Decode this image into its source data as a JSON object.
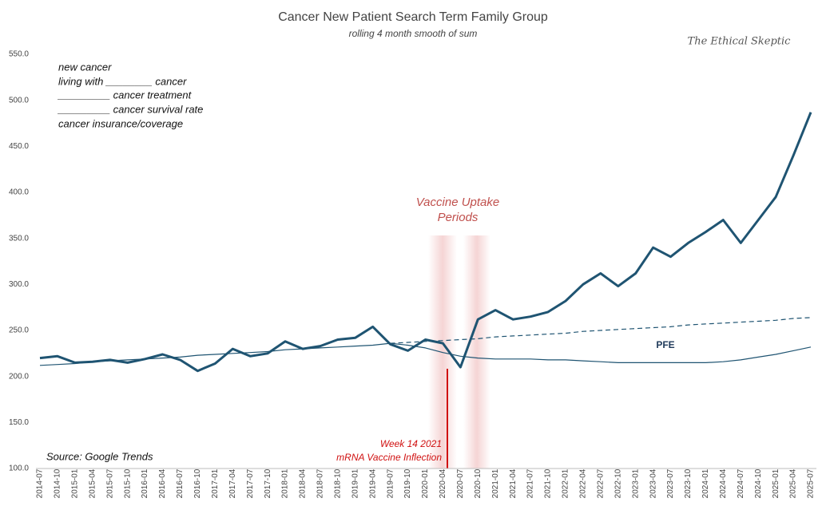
{
  "chart_data": {
    "type": "line",
    "title": "Cancer New Patient Search Term Family Group",
    "subtitle": "rolling 4 month smooth of sum",
    "watermark": "The Ethical Skeptic",
    "legend_text": [
      "new cancer",
      "living with ________ cancer",
      "_________ cancer treatment",
      "_________ cancer survival rate",
      "cancer insurance/coverage"
    ],
    "source": "Source: Google Trends",
    "annotations": {
      "uptake": [
        "Vaccine Uptake",
        "Periods"
      ],
      "inflection": [
        "Week 14 2021",
        "mRNA Vaccine Inflection"
      ]
    },
    "categories": [
      "2014-07",
      "2014-10",
      "2015-01",
      "2015-04",
      "2015-07",
      "2015-10",
      "2016-01",
      "2016-04",
      "2016-07",
      "2016-10",
      "2017-01",
      "2017-04",
      "2017-07",
      "2017-10",
      "2018-01",
      "2018-04",
      "2018-07",
      "2018-10",
      "2019-01",
      "2019-04",
      "2019-07",
      "2019-10",
      "2020-01",
      "2020-04",
      "2020-07",
      "2020-10",
      "2021-01",
      "2021-04",
      "2021-07",
      "2021-10",
      "2022-01",
      "2022-04",
      "2022-07",
      "2022-10",
      "2023-01",
      "2023-04",
      "2023-07",
      "2023-10",
      "2024-01",
      "2024-04",
      "2024-07",
      "2024-10",
      "2025-01",
      "2025-04",
      "2025-07"
    ],
    "series": [
      {
        "color": "#1f5472",
        "width": 3,
        "values": [
          220,
          222,
          215,
          216,
          218,
          215,
          219,
          224,
          218,
          206,
          214,
          230,
          222,
          225,
          238,
          230,
          233,
          240,
          242,
          254,
          235,
          228,
          240,
          236,
          210,
          262,
          272,
          262,
          265,
          270,
          282,
          300,
          312,
          298,
          312,
          340,
          330,
          345,
          357,
          370,
          345,
          370,
          395,
          440,
          487
        ]
      },
      {
        "color": "#1f5472",
        "width": 1.2,
        "dashed_from": 20,
        "values": [
          212,
          213,
          214,
          216,
          217,
          218,
          219,
          220,
          221,
          223,
          224,
          225,
          226,
          227,
          229,
          230,
          231,
          232,
          233,
          234,
          236,
          237,
          238,
          239,
          240,
          241,
          243,
          244,
          245,
          246,
          247,
          249,
          250,
          251,
          252,
          253,
          254,
          256,
          257,
          258,
          259,
          260,
          261,
          263,
          264
        ]
      },
      {
        "name": "PFE",
        "color": "#1f5472",
        "width": 1.2,
        "values": [
          null,
          null,
          null,
          null,
          null,
          null,
          null,
          null,
          null,
          null,
          null,
          null,
          null,
          null,
          null,
          null,
          null,
          null,
          null,
          null,
          236,
          234,
          231,
          226,
          222,
          220,
          219,
          219,
          219,
          218,
          218,
          217,
          216,
          215,
          215,
          215,
          215,
          215,
          215,
          216,
          218,
          221,
          224,
          228,
          232
        ]
      }
    ],
    "ylim": [
      100,
      550
    ],
    "yticks": [
      {
        "value": 100,
        "label": "100.0"
      },
      {
        "value": 150,
        "label": "150.0"
      },
      {
        "value": 200,
        "label": "200.0"
      },
      {
        "value": 250,
        "label": "250.0"
      },
      {
        "value": 300,
        "label": "300.0"
      },
      {
        "value": 350,
        "label": "350.0"
      },
      {
        "value": 400,
        "label": "400.0"
      },
      {
        "value": 450,
        "label": "450.0"
      },
      {
        "value": 500,
        "label": "500.0"
      },
      {
        "value": 550,
        "label": "550.0"
      }
    ],
    "grid": false
  }
}
